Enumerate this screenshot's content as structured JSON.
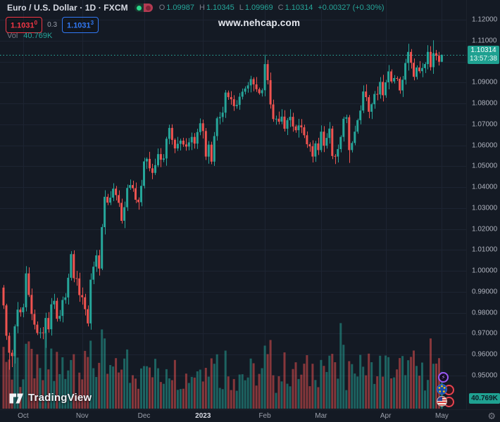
{
  "header": {
    "symbol_title": "Euro / U.S. Dollar · 1D · FXCM",
    "ohlc": {
      "o_label": "O",
      "o": "1.09987",
      "h_label": "H",
      "h": "1.10345",
      "l_label": "L",
      "l": "1.09969",
      "c_label": "C",
      "c": "1.10314",
      "change": "+0.00327 (+0.30%)"
    },
    "bid_main": "1.1031",
    "bid_sup": "0",
    "spread": "0.3",
    "ask_main": "1.1031",
    "ask_sup": "3",
    "vol_label": "Vol",
    "vol_value": "40.769K"
  },
  "watermark": "www.nehcap.com",
  "logo_text": "TradingView",
  "price_axis": {
    "labels": [
      "1.12000",
      "1.11000",
      "1.10000",
      "1.09000",
      "1.08000",
      "1.07000",
      "1.06000",
      "1.05000",
      "1.04000",
      "1.03000",
      "1.02000",
      "1.01000",
      "1.00000",
      "0.99000",
      "0.98000",
      "0.97000",
      "0.96000",
      "0.95000"
    ],
    "price_label_value": "1.10314",
    "price_label_countdown": "13:57:38",
    "volume_axis_label": "40.769K"
  },
  "time_axis": {
    "months": [
      {
        "label": "Oct",
        "index": 7,
        "year": false
      },
      {
        "label": "Nov",
        "index": 28,
        "year": false
      },
      {
        "label": "Dec",
        "index": 50,
        "year": false
      },
      {
        "label": "2023",
        "index": 71,
        "year": true
      },
      {
        "label": "Feb",
        "index": 93,
        "year": false
      },
      {
        "label": "Mar",
        "index": 113,
        "year": false
      },
      {
        "label": "Apr",
        "index": 136,
        "year": false
      },
      {
        "label": "May",
        "index": 156,
        "year": false
      }
    ],
    "gear_icon": "⚙"
  },
  "bubbles": {
    "flash_icon": "⚡"
  },
  "colors": {
    "background": "#141a24",
    "grid": "#1d2432",
    "candle_up": "#26a69a",
    "candle_down": "#ef5350",
    "volume_up": "rgba(38,166,154,0.52)",
    "volume_down": "rgba(239,83,80,0.52)",
    "price_line": "#2bb3a3",
    "label_bg": "#1fa191",
    "bid_red": "#f23645",
    "ask_blue": "#3179f5"
  },
  "chart_data": {
    "type": "candlestick",
    "symbol": "EURUSD",
    "description": "Euro / U.S. Dollar",
    "timeframe": "1D",
    "exchange": "FXCM",
    "title": "Euro / U.S. Dollar · 1D · FXCM",
    "y_axis": {
      "min": 0.95,
      "max": 1.12,
      "step": 0.01
    },
    "x_range": "Sep 2022 - May 2023",
    "last_bar": {
      "open": 1.09987,
      "high": 1.10345,
      "low": 1.09969,
      "close": 1.10314,
      "change": 0.00327,
      "change_pct": 0.3,
      "volume_k": 40.769,
      "countdown": "13:57:38"
    },
    "bid": 1.1031,
    "ask": 1.10313,
    "spread_pips": 0.3,
    "price_line": 1.10314,
    "open_first": 0.992,
    "closes": [
      0.9835,
      0.969,
      0.9609,
      0.9593,
      0.9735,
      0.9815,
      0.9802,
      0.9826,
      0.9988,
      0.9885,
      0.9794,
      0.9743,
      0.9703,
      0.9706,
      0.9703,
      0.9775,
      0.9721,
      0.984,
      0.9857,
      0.9771,
      0.9785,
      0.9861,
      0.9873,
      0.9967,
      1.008,
      0.9965,
      0.9964,
      0.9884,
      0.9874,
      0.9817,
      0.9749,
      0.9958,
      1.002,
      1.0074,
      1.0011,
      1.0209,
      1.0354,
      1.0326,
      1.035,
      1.0393,
      1.0362,
      1.0325,
      1.0239,
      1.0304,
      1.0396,
      1.041,
      1.0395,
      1.034,
      1.0328,
      1.0406,
      1.0523,
      1.0535,
      1.049,
      1.0468,
      1.0505,
      1.0558,
      1.0531,
      1.0537,
      1.0631,
      1.0683,
      1.0626,
      1.0585,
      1.0607,
      1.0622,
      1.0604,
      1.0594,
      1.0614,
      1.064,
      1.0608,
      1.0663,
      1.0705,
      1.0668,
      1.0546,
      1.0603,
      1.0522,
      1.0644,
      1.0729,
      1.0735,
      1.0756,
      1.0852,
      1.083,
      1.082,
      1.0787,
      1.0793,
      1.0832,
      1.0856,
      1.0871,
      1.0886,
      1.0916,
      1.0891,
      1.0868,
      1.0849,
      1.0863,
      1.0988,
      1.0911,
      1.0795,
      1.0725,
      1.0727,
      1.0713,
      1.0737,
      1.0679,
      1.072,
      1.0736,
      1.069,
      1.0672,
      1.0695,
      1.0686,
      1.0648,
      1.0605,
      1.0595,
      1.0546,
      1.0609,
      1.0577,
      1.0665,
      1.0598,
      1.0635,
      1.068,
      1.0549,
      1.0546,
      1.0582,
      1.064,
      1.0727,
      1.0734,
      1.0577,
      1.0611,
      1.0665,
      1.072,
      1.0766,
      1.0857,
      1.083,
      1.076,
      1.0796,
      1.0845,
      1.0843,
      1.0903,
      1.0839,
      1.0901,
      1.0953,
      1.0905,
      1.0921,
      1.0918,
      1.0862,
      1.0913,
      1.0993,
      1.1046,
      1.0994,
      1.0927,
      1.0972,
      1.0954,
      1.0969,
      1.0988,
      1.1046,
      1.0973,
      1.104,
      1.1028,
      1.0999,
      1.10314
    ],
    "wick_overrides": {
      "2": [
        0,
        0.9528
      ],
      "3": [
        0,
        0.954
      ],
      "15": [
        0.98,
        0.9632
      ],
      "24": [
        1.0094,
        0
      ],
      "93": [
        1.1033,
        0
      ],
      "123": [
        0,
        1.0516
      ],
      "144": [
        1.1085,
        0
      ],
      "153": [
        1.1102,
        0
      ],
      "156": [
        1.10345,
        1.09969
      ]
    },
    "volume_overrides": {
      "8": 72,
      "15": 85,
      "35": 88,
      "36": 78,
      "93": 70,
      "120": 95,
      "152": 78,
      "156": 40.769
    }
  }
}
